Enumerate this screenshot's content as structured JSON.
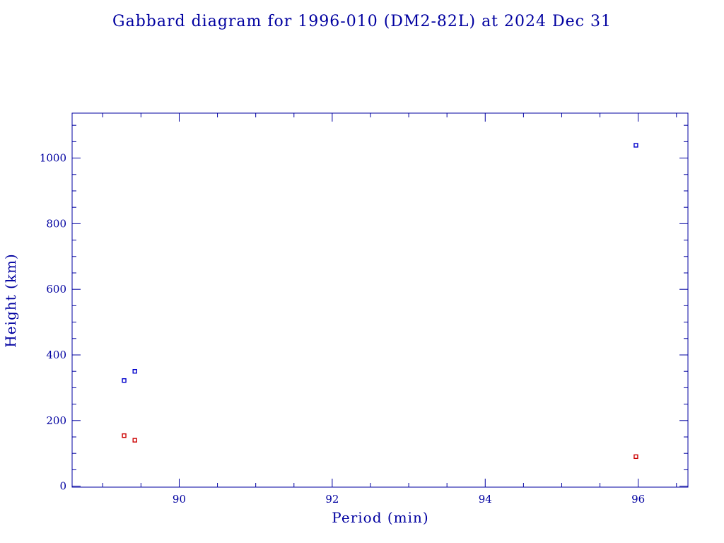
{
  "chart_data": {
    "type": "scatter",
    "title": "Gabbard diagram for 1996-010 (DM2-82L) at 2024 Dec 31",
    "xlabel": "Period (min)",
    "ylabel": "Height (km)",
    "xlim": [
      88.6,
      96.65
    ],
    "ylim": [
      -3,
      1137
    ],
    "xticks": [
      90,
      92,
      94,
      96
    ],
    "yticks": [
      0,
      200,
      400,
      600,
      800,
      1000
    ],
    "x_minor_step": 0.5,
    "y_minor_step": 50,
    "grid": false,
    "series": [
      {
        "role": "apogee",
        "color": "#0000cc",
        "points": [
          {
            "x": 89.28,
            "y": 322
          },
          {
            "x": 89.42,
            "y": 350
          },
          {
            "x": 95.97,
            "y": 1039
          }
        ]
      },
      {
        "role": "perigee",
        "color": "#cc0000",
        "points": [
          {
            "x": 89.28,
            "y": 154
          },
          {
            "x": 89.42,
            "y": 140
          },
          {
            "x": 95.97,
            "y": 90
          }
        ]
      }
    ],
    "colors": {
      "text": "#0000a0",
      "axes": "#0000a0"
    }
  }
}
